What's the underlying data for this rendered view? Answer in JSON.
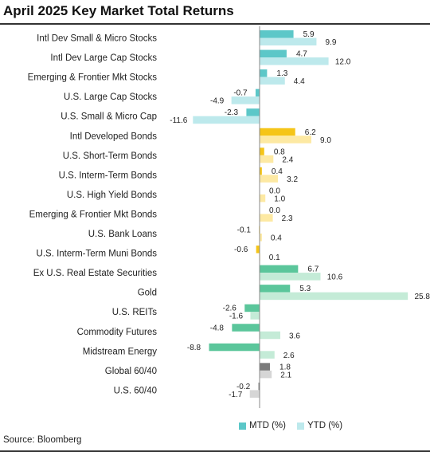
{
  "title": "April 2025 Key Market Total Returns",
  "source": "Source: Bloomberg",
  "legend": {
    "mtd_label": "MTD (%)",
    "ytd_label": "YTD (%)",
    "mtd_color": "#5cc7c8",
    "ytd_color": "#bde9ec"
  },
  "chart_data": {
    "type": "bar",
    "orientation": "horizontal",
    "categories": [
      "Intl Dev Small & Micro Stocks",
      "Intl Dev Large Cap Stocks",
      "Emerging & Frontier Mkt Stocks",
      "U.S. Large Cap Stocks",
      "U.S. Small & Micro Cap",
      "Intl Developed Bonds",
      "U.S. Short-Term Bonds",
      "U.S. Interm-Term Bonds",
      "U.S. High Yield Bonds",
      "Emerging & Frontier Mkt Bonds",
      "U.S. Bank Loans",
      "U.S. Interm-Term Muni Bonds",
      "Ex U.S. Real Estate Securities",
      "Gold",
      "U.S. REITs",
      "Commodity Futures",
      "Midstream Energy",
      "Global 60/40",
      "U.S. 60/40"
    ],
    "series": [
      {
        "name": "MTD (%)",
        "values": [
          5.9,
          4.7,
          1.3,
          -0.7,
          -2.3,
          6.2,
          0.8,
          0.4,
          0.0,
          0.0,
          -0.1,
          -0.6,
          6.7,
          5.3,
          -2.6,
          -4.8,
          -8.8,
          1.8,
          -0.2
        ]
      },
      {
        "name": "YTD (%)",
        "values": [
          9.9,
          12.0,
          4.4,
          -4.9,
          -11.6,
          9.0,
          2.4,
          3.2,
          1.0,
          2.3,
          0.4,
          0.1,
          10.6,
          25.8,
          -1.6,
          3.6,
          2.6,
          2.1,
          -1.7
        ]
      }
    ],
    "group_colors": [
      {
        "mtd": "#5cc7c8",
        "ytd": "#bde9ec"
      },
      {
        "mtd": "#5cc7c8",
        "ytd": "#bde9ec"
      },
      {
        "mtd": "#5cc7c8",
        "ytd": "#bde9ec"
      },
      {
        "mtd": "#5cc7c8",
        "ytd": "#bde9ec"
      },
      {
        "mtd": "#5cc7c8",
        "ytd": "#bde9ec"
      },
      {
        "mtd": "#f5c518",
        "ytd": "#fde9a3"
      },
      {
        "mtd": "#f5c518",
        "ytd": "#fde9a3"
      },
      {
        "mtd": "#f5c518",
        "ytd": "#fde9a3"
      },
      {
        "mtd": "#f5c518",
        "ytd": "#fde9a3"
      },
      {
        "mtd": "#f5c518",
        "ytd": "#fde9a3"
      },
      {
        "mtd": "#f5c518",
        "ytd": "#fde9a3"
      },
      {
        "mtd": "#f5c518",
        "ytd": "#fde9a3"
      },
      {
        "mtd": "#5bc69b",
        "ytd": "#c4ebd7"
      },
      {
        "mtd": "#5bc69b",
        "ytd": "#c4ebd7"
      },
      {
        "mtd": "#5bc69b",
        "ytd": "#c4ebd7"
      },
      {
        "mtd": "#5bc69b",
        "ytd": "#c4ebd7"
      },
      {
        "mtd": "#5bc69b",
        "ytd": "#c4ebd7"
      },
      {
        "mtd": "#7a7a7a",
        "ytd": "#d6d6d6"
      },
      {
        "mtd": "#7a7a7a",
        "ytd": "#d6d6d6"
      }
    ],
    "xlim": [
      -13.5,
      28
    ],
    "grid": false,
    "legend_position": "bottom-right"
  }
}
